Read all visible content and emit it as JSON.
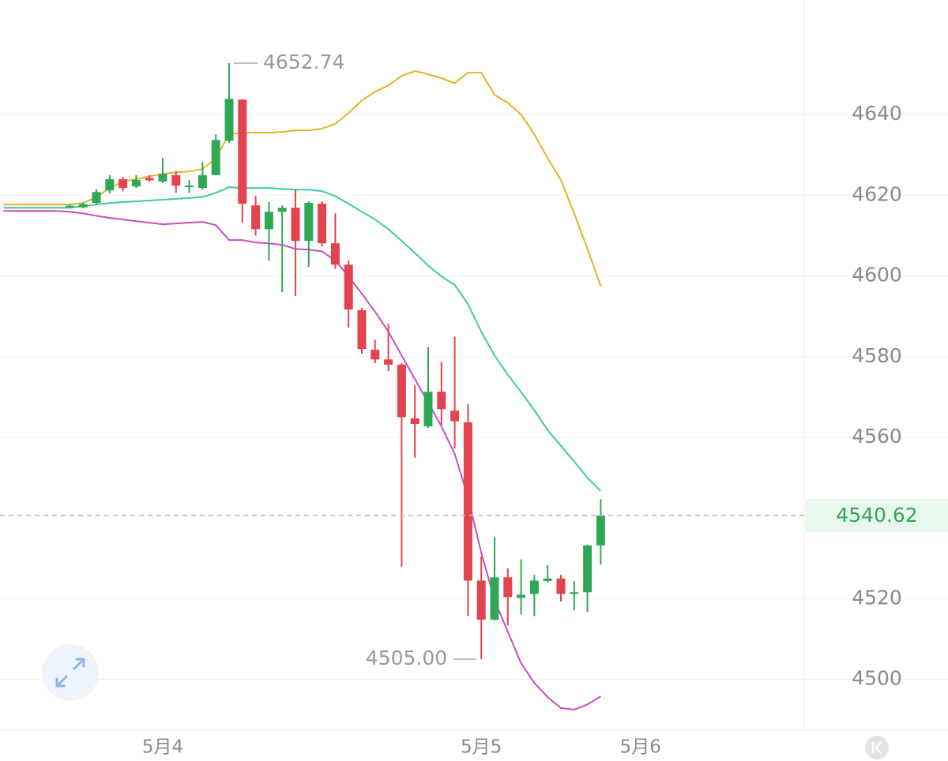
{
  "chart_data": {
    "type": "candlestick",
    "categories": [
      null,
      null,
      null,
      null,
      null,
      null,
      null,
      null,
      null,
      null,
      null,
      null,
      "5月4",
      null,
      null,
      null,
      null,
      null,
      null,
      null,
      null,
      null,
      null,
      null,
      null,
      null,
      null,
      null,
      null,
      null,
      null,
      null,
      null,
      null,
      null,
      null,
      "5月5",
      null,
      null,
      null,
      null,
      null,
      null,
      null,
      null,
      null,
      null,
      null,
      "5月6"
    ],
    "open": [
      null,
      null,
      null,
      null,
      null,
      4617.0,
      4617.0,
      4618.1,
      4621.2,
      4624.0,
      4622.2,
      4624.3,
      4623.4,
      4625.0,
      4622.0,
      4621.8,
      4625.0,
      4633.5,
      4643.7,
      4617.5,
      4611.6,
      4615.9,
      4616.9,
      4608.7,
      4617.9,
      4608.1,
      4602.8,
      4591.5,
      4581.7,
      4579.3,
      4578.0,
      4564.7,
      4562.7,
      4571.3,
      4566.6,
      4563.7,
      4524.5,
      4514.8,
      4525.3,
      4520.2,
      4521.2,
      4524.4,
      4525.0,
      4521.2,
      4521.6,
      4533.2,
      null,
      null,
      null
    ],
    "high": [
      null,
      null,
      null,
      null,
      null,
      4617.8,
      4618.2,
      4621.5,
      4625.0,
      4624.5,
      4625.0,
      4625.0,
      4629.2,
      4626.0,
      4623.8,
      4628.3,
      4635.1,
      4652.74,
      4643.9,
      4619.8,
      4618.3,
      4617.5,
      4621.4,
      4618.5,
      4618.5,
      4615.5,
      4603.8,
      4592.1,
      4584.2,
      4588.1,
      4578.4,
      4572.9,
      4582.3,
      4578.7,
      4585.0,
      4568.2,
      4530.4,
      4535.3,
      4527.5,
      4529.8,
      4525.9,
      4528.3,
      4525.9,
      4524.4,
      4533.4,
      4544.7,
      null,
      null,
      null
    ],
    "low": [
      null,
      null,
      null,
      null,
      null,
      4616.8,
      4616.8,
      4617.7,
      4620.4,
      4621.0,
      4621.8,
      4623.3,
      4623.0,
      4620.6,
      4620.6,
      4621.4,
      4625.0,
      4633.0,
      4613.2,
      4610.0,
      4603.8,
      4596.0,
      4595.0,
      4602.2,
      4607.3,
      4601.8,
      4587.2,
      4580.7,
      4578.4,
      4576.4,
      4527.9,
      4554.9,
      4562.3,
      4563.1,
      4557.2,
      4515.7,
      4505.0,
      4514.6,
      4513.4,
      4516.1,
      4515.7,
      4524.0,
      4519.3,
      4517.1,
      4516.7,
      4528.5,
      null,
      null,
      null
    ],
    "close": [
      null,
      null,
      null,
      null,
      null,
      4617.4,
      4617.8,
      4620.8,
      4624.0,
      4621.8,
      4623.8,
      4623.7,
      4625.3,
      4622.4,
      4622.4,
      4625.0,
      4633.7,
      4643.9,
      4617.9,
      4611.6,
      4615.9,
      4616.9,
      4608.7,
      4618.1,
      4608.1,
      4602.8,
      4591.7,
      4581.9,
      4579.3,
      4578.0,
      4565.0,
      4563.3,
      4571.3,
      4567.0,
      4564.0,
      4524.5,
      4514.8,
      4525.3,
      4520.4,
      4521.0,
      4524.5,
      4525.0,
      4521.2,
      4521.6,
      4533.2,
      4540.62,
      null,
      null,
      null
    ],
    "up_color": "#2fa856",
    "down_color": "#e2434f",
    "series": [
      {
        "color": "#e8b224",
        "values": [
          4617.7,
          4617.7,
          4617.7,
          4617.7,
          4617.7,
          4617.7,
          4618.1,
          4619.5,
          4621.8,
          4623.4,
          4624.0,
          4624.7,
          4625.3,
          4625.7,
          4625.9,
          4626.5,
          4629.2,
          4635.1,
          4635.5,
          4635.5,
          4635.5,
          4635.7,
          4636.1,
          4636.1,
          4636.5,
          4637.7,
          4640.4,
          4643.5,
          4645.7,
          4647.2,
          4649.6,
          4650.8,
          4650.0,
          4649.0,
          4647.8,
          4650.4,
          4650.4,
          4644.9,
          4642.9,
          4640.0,
          4635.1,
          4629.2,
          4623.8,
          4615.5,
          4606.7,
          4597.5,
          null,
          null,
          null
        ]
      },
      {
        "color": "#3ec9a7",
        "values": [
          4616.9,
          4616.9,
          4616.9,
          4616.9,
          4616.9,
          4616.9,
          4617.3,
          4617.7,
          4618.1,
          4618.3,
          4618.5,
          4618.7,
          4618.9,
          4619.1,
          4619.3,
          4619.6,
          4620.6,
          4622.0,
          4621.8,
          4621.8,
          4621.8,
          4621.6,
          4621.4,
          4621.4,
          4621.0,
          4619.8,
          4617.9,
          4615.9,
          4614.0,
          4611.6,
          4608.7,
          4605.7,
          4602.6,
          4599.9,
          4597.8,
          4593.0,
          4586.2,
          4580.3,
          4575.5,
          4571.2,
          4566.7,
          4561.8,
          4557.9,
          4554.0,
          4550.0,
          4546.7,
          null,
          null,
          null
        ]
      },
      {
        "color": "#c74ec2",
        "values": [
          4616.1,
          4616.1,
          4616.1,
          4616.1,
          4616.1,
          4615.9,
          4615.5,
          4614.9,
          4614.4,
          4614.0,
          4613.6,
          4613.2,
          4612.8,
          4613.0,
          4613.2,
          4613.4,
          4612.6,
          4608.9,
          4608.9,
          4608.3,
          4608.1,
          4607.7,
          4606.7,
          4606.5,
          4606.1,
          4603.8,
          4599.9,
          4595.6,
          4591.1,
          4586.2,
          4580.3,
          4574.4,
          4568.6,
          4562.7,
          4555.9,
          4545.1,
          4531.4,
          4519.7,
          4511.8,
          4504.0,
          4499.1,
          4495.6,
          4492.9,
          4492.5,
          4493.8,
          4495.8,
          null,
          null,
          null
        ]
      }
    ],
    "high_label": 4652.74,
    "low_label": {
      "value": 4505,
      "label": "4505.00"
    },
    "last_price": 4540.62,
    "ylim": [
      4487.4,
      4668.4
    ],
    "yticks": [
      4500,
      4520,
      4560,
      4580,
      4600,
      4620,
      4640
    ],
    "grid": true
  }
}
